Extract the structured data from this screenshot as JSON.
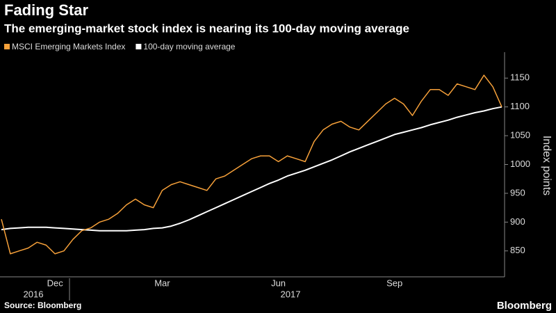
{
  "chart_data": {
    "type": "line",
    "title": "Fading Star",
    "subtitle": "The emerging-market stock index is nearing its 100-day moving average",
    "y_label": "Index points",
    "source": "Source: Bloomberg",
    "brand": "Bloomberg",
    "categories": [
      null,
      null,
      null,
      null,
      null,
      null,
      "Dec",
      null,
      null,
      null,
      null,
      null,
      null,
      null,
      null,
      null,
      null,
      null,
      "Mar",
      null,
      null,
      null,
      null,
      null,
      null,
      null,
      null,
      null,
      null,
      null,
      null,
      "Jun",
      null,
      null,
      null,
      null,
      null,
      null,
      null,
      null,
      null,
      null,
      null,
      null,
      "Sep",
      null,
      null,
      null,
      null,
      null,
      null,
      null,
      null,
      null,
      null,
      null,
      null
    ],
    "x_group_labels": [
      "2016",
      "2017"
    ],
    "series": [
      {
        "name": "MSCI Emerging Markets Index",
        "color": "#f7a13a",
        "values": [
          905,
          845,
          850,
          855,
          865,
          860,
          845,
          850,
          870,
          885,
          890,
          900,
          905,
          915,
          930,
          940,
          930,
          925,
          955,
          965,
          970,
          965,
          960,
          955,
          975,
          980,
          990,
          1000,
          1010,
          1015,
          1015,
          1005,
          1015,
          1010,
          1005,
          1040,
          1060,
          1070,
          1075,
          1065,
          1060,
          1075,
          1090,
          1105,
          1115,
          1105,
          1085,
          1110,
          1130,
          1130,
          1120,
          1140,
          1135,
          1130,
          1155,
          1135,
          1100
        ]
      },
      {
        "name": "100-day moving average",
        "color": "#ffffff",
        "values": [
          887,
          889,
          890,
          891,
          891,
          891,
          890,
          889,
          888,
          887,
          886,
          885,
          885,
          885,
          885,
          886,
          887,
          889,
          890,
          893,
          898,
          904,
          911,
          918,
          925,
          932,
          939,
          946,
          953,
          960,
          967,
          973,
          980,
          985,
          990,
          996,
          1002,
          1008,
          1015,
          1022,
          1028,
          1034,
          1040,
          1046,
          1052,
          1056,
          1060,
          1064,
          1069,
          1073,
          1077,
          1082,
          1086,
          1090,
          1093,
          1097,
          1100
        ]
      }
    ],
    "ylim": [
      805,
      1195
    ],
    "yticks": [
      850,
      900,
      950,
      1000,
      1050,
      1100,
      1150
    ],
    "grid": false,
    "legend": "top-left"
  }
}
